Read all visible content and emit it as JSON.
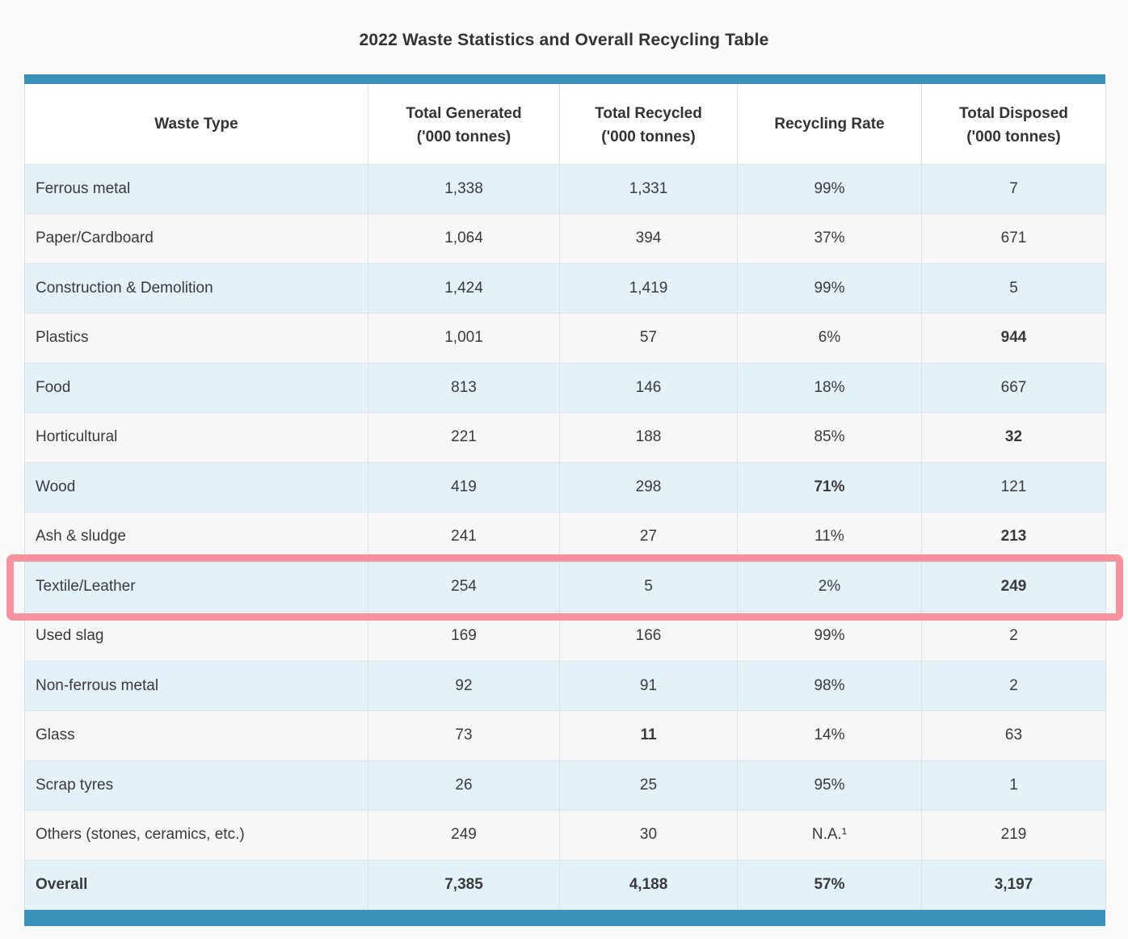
{
  "title": "2022 Waste Statistics and Overall Recycling Table",
  "colors": {
    "accent_bar": "#3a92b8",
    "row_alternate_blue": "#e3f1f9",
    "row_alternate_gray": "#f7f7f8",
    "highlight_border": "#f6929d",
    "header_background": "#ffffff",
    "page_background": "#fafafa",
    "text": "#3a3a3a"
  },
  "table": {
    "columns": [
      {
        "label": "Waste Type",
        "sub": ""
      },
      {
        "label": "Total Generated",
        "sub": "('000 tonnes)"
      },
      {
        "label": "Total Recycled",
        "sub": "('000 tonnes)"
      },
      {
        "label": "Recycling Rate",
        "sub": ""
      },
      {
        "label": "Total Disposed",
        "sub": "('000 tonnes)"
      }
    ],
    "rows": [
      {
        "waste_type": "Ferrous metal",
        "generated": "1,338",
        "recycled": "1,331",
        "rate": "99%",
        "disposed": "7",
        "bold": []
      },
      {
        "waste_type": "Paper/Cardboard",
        "generated": "1,064",
        "recycled": "394",
        "rate": "37%",
        "disposed": "671",
        "bold": []
      },
      {
        "waste_type": "Construction & Demolition",
        "generated": "1,424",
        "recycled": "1,419",
        "rate": "99%",
        "disposed": "5",
        "bold": []
      },
      {
        "waste_type": "Plastics",
        "generated": "1,001",
        "recycled": "57",
        "rate": "6%",
        "disposed": "944",
        "bold": [
          "disposed"
        ]
      },
      {
        "waste_type": "Food",
        "generated": "813",
        "recycled": "146",
        "rate": "18%",
        "disposed": "667",
        "bold": []
      },
      {
        "waste_type": "Horticultural",
        "generated": "221",
        "recycled": "188",
        "rate": "85%",
        "disposed": "32",
        "bold": [
          "disposed"
        ]
      },
      {
        "waste_type": "Wood",
        "generated": "419",
        "recycled": "298",
        "rate": "71%",
        "disposed": "121",
        "bold": [
          "rate"
        ]
      },
      {
        "waste_type": "Ash & sludge",
        "generated": "241",
        "recycled": "27",
        "rate": "11%",
        "disposed": "213",
        "bold": [
          "disposed"
        ]
      },
      {
        "waste_type": "Textile/Leather",
        "generated": "254",
        "recycled": "5",
        "rate": "2%",
        "disposed": "249",
        "bold": [
          "disposed"
        ],
        "highlighted": true
      },
      {
        "waste_type": "Used slag",
        "generated": "169",
        "recycled": "166",
        "rate": "99%",
        "disposed": "2",
        "bold": []
      },
      {
        "waste_type": "Non-ferrous metal",
        "generated": "92",
        "recycled": "91",
        "rate": "98%",
        "disposed": "2",
        "bold": []
      },
      {
        "waste_type": "Glass",
        "generated": "73",
        "recycled": "11",
        "rate": "14%",
        "disposed": "63",
        "bold": [
          "recycled"
        ]
      },
      {
        "waste_type": "Scrap tyres",
        "generated": "26",
        "recycled": "25",
        "rate": "95%",
        "disposed": "1",
        "bold": []
      },
      {
        "waste_type": "Others (stones, ceramics, etc.)",
        "generated": "249",
        "recycled": "30",
        "rate": "N.A.¹",
        "disposed": "219",
        "bold": []
      },
      {
        "waste_type": "Overall",
        "generated": "7,385",
        "recycled": "4,188",
        "rate": "57%",
        "disposed": "3,197",
        "bold": [
          "waste_type",
          "generated",
          "recycled",
          "rate",
          "disposed"
        ]
      }
    ]
  },
  "highlight": {
    "highlighted_row": "Textile/Leather"
  }
}
